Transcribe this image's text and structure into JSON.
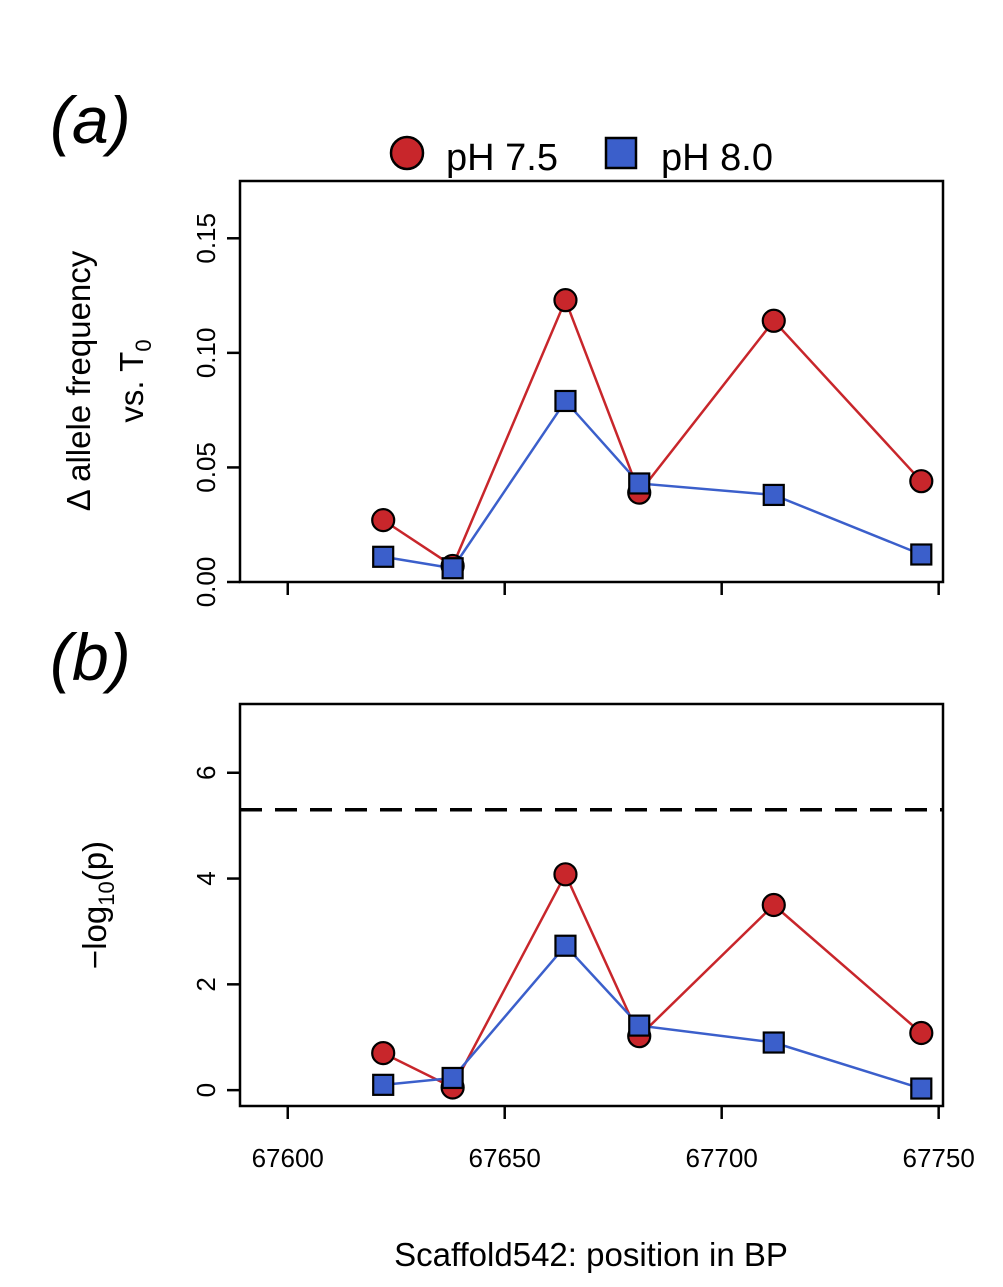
{
  "chart_data": [
    {
      "type": "line",
      "panel_label": "a",
      "ylabel": "Δ allele frequency",
      "ylabel_line2_prefix": "vs. T",
      "ylabel_line2_subscript": "0",
      "xlim": [
        67589,
        67751
      ],
      "ylim": [
        0,
        0.175
      ],
      "xticks": [
        67600,
        67650,
        67700,
        67750
      ],
      "yticks": [
        0.0,
        0.05,
        0.1,
        0.15
      ],
      "ytick_labels": [
        "0.00",
        "0.05",
        "0.10",
        "0.15"
      ],
      "x_tick_labels_shown": false,
      "legend": {
        "placement": "top",
        "entries": [
          "pH 7.5",
          "pH 8.0"
        ]
      },
      "series": [
        {
          "name": "pH 7.5",
          "marker": "circle",
          "color": "#c8262b",
          "x": [
            67622,
            67638,
            67664,
            67681,
            67712,
            67746
          ],
          "y": [
            0.027,
            0.007,
            0.123,
            0.039,
            0.114,
            0.044
          ]
        },
        {
          "name": "pH 8.0",
          "marker": "square",
          "color": "#3b5fcb",
          "x": [
            67622,
            67638,
            67664,
            67681,
            67712,
            67746
          ],
          "y": [
            0.011,
            0.006,
            0.079,
            0.043,
            0.038,
            0.012
          ]
        }
      ]
    },
    {
      "type": "line",
      "panel_label": "b",
      "ylabel_prefix": "−log",
      "ylabel_subscript": "10",
      "ylabel_arg": "(p)",
      "xlabel": "Scaffold542: position in BP",
      "xlim": [
        67589,
        67751
      ],
      "ylim": [
        -0.3,
        7.3
      ],
      "xticks": [
        67600,
        67650,
        67700,
        67750
      ],
      "xtick_labels": [
        "67600",
        "67650",
        "67700",
        "67750"
      ],
      "yticks": [
        0,
        2,
        4,
        6
      ],
      "ytick_labels": [
        "0",
        "2",
        "4",
        "6"
      ],
      "threshold_line": {
        "y": 5.3,
        "style": "dashed"
      },
      "series": [
        {
          "name": "pH 7.5",
          "marker": "circle",
          "color": "#c8262b",
          "x": [
            67622,
            67638,
            67664,
            67681,
            67712,
            67746
          ],
          "y": [
            0.7,
            0.05,
            4.08,
            1.02,
            3.5,
            1.08
          ]
        },
        {
          "name": "pH 8.0",
          "marker": "square",
          "color": "#3b5fcb",
          "x": [
            67622,
            67638,
            67664,
            67681,
            67712,
            67746
          ],
          "y": [
            0.1,
            0.23,
            2.73,
            1.22,
            0.9,
            0.03
          ]
        }
      ]
    }
  ]
}
